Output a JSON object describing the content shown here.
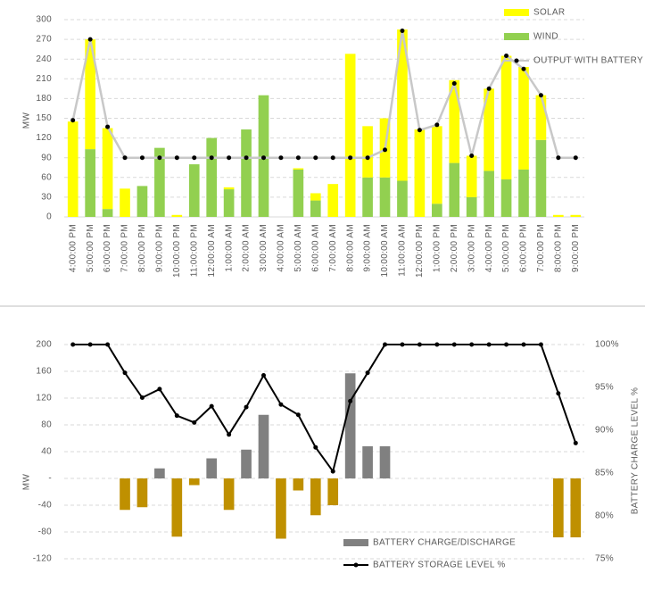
{
  "chart_data": [
    {
      "type": "bar",
      "stacked": true,
      "y_label": "MW",
      "categories": [
        "4:00:00 PM",
        "5:00:00 PM",
        "6:00:00 PM",
        "7:00:00 PM",
        "8:00:00 PM",
        "9:00:00 PM",
        "10:00:00 PM",
        "11:00:00 PM",
        "12:00:00 AM",
        "1:00:00 AM",
        "2:00:00 AM",
        "3:00:00 AM",
        "4:00:00 AM",
        "5:00:00 AM",
        "6:00:00 AM",
        "7:00:00 AM",
        "8:00:00 AM",
        "9:00:00 AM",
        "10:00:00 AM",
        "11:00:00 AM",
        "12:00:00 PM",
        "1:00:00 PM",
        "2:00:00 PM",
        "3:00:00 PM",
        "4:00:00 PM",
        "5:00:00 PM",
        "6:00:00 PM",
        "7:00:00 PM",
        "8:00:00 PM",
        "9:00:00 PM"
      ],
      "series": [
        {
          "name": "SOLAR",
          "color": "#ffff00",
          "values": [
            145,
            167,
            123,
            43,
            0,
            0,
            3,
            0,
            0,
            3,
            0,
            0,
            0,
            2,
            11,
            50,
            248,
            78,
            90,
            230,
            133,
            118,
            126,
            63,
            125,
            188,
            156,
            68,
            3,
            3
          ]
        },
        {
          "name": "WIND",
          "color": "#92d050",
          "values": [
            0,
            103,
            12,
            0,
            47,
            105,
            0,
            80,
            120,
            42,
            133,
            185,
            0,
            72,
            25,
            0,
            0,
            60,
            60,
            55,
            0,
            20,
            82,
            30,
            70,
            57,
            72,
            117,
            0,
            0
          ]
        },
        {
          "name": "OUTPUT WITH BATTERY",
          "type": "line",
          "color": "#c8c8c8",
          "marker_color": "#000000",
          "values": [
            147,
            270,
            137,
            90,
            90,
            90,
            90,
            90,
            90,
            90,
            90,
            90,
            90,
            90,
            90,
            90,
            90,
            90,
            102,
            283,
            132,
            140,
            203,
            93,
            195,
            245,
            225,
            185,
            90,
            90
          ]
        }
      ],
      "ylim": [
        0,
        300
      ],
      "yticks": [
        0,
        30,
        60,
        90,
        120,
        150,
        180,
        210,
        240,
        270,
        300
      ],
      "grid": true,
      "legend": "top-right"
    },
    {
      "type": "bar",
      "y_label": "MW",
      "y2_label": "BATTERY CHARGE LEVEL %",
      "series": [
        {
          "name": "BATTERY CHARGE/DISCHARGE",
          "color": "#808080",
          "negative_color": "#bf9000",
          "values": [
            0,
            0,
            0,
            -47,
            -43,
            15,
            -87,
            -10,
            30,
            -47,
            43,
            95,
            -90,
            -18,
            -55,
            -40,
            157,
            48,
            48,
            0,
            0,
            0,
            0,
            0,
            0,
            0,
            0,
            0,
            -88,
            -88
          ]
        },
        {
          "name": "BATTERY STORAGE LEVEL %",
          "type": "line",
          "axis": "y2",
          "color": "#000000",
          "marker_color": "#000000",
          "values": [
            100,
            100,
            100,
            96.7,
            93.8,
            94.8,
            91.7,
            90.9,
            92.8,
            89.5,
            92.7,
            96.4,
            93,
            91.8,
            88,
            85.2,
            93.4,
            96.7,
            100,
            100,
            100,
            100,
            100,
            100,
            100,
            100,
            100,
            100,
            94.3,
            88.5
          ]
        }
      ],
      "ylim": [
        -120,
        200
      ],
      "yticks": [
        -120,
        -80,
        -40,
        {
          "value": 0,
          "label": "-"
        },
        40,
        80,
        120,
        160,
        200
      ],
      "y2lim": [
        75,
        100
      ],
      "y2ticks": [
        {
          "value": 75,
          "label": "75%"
        },
        {
          "value": 80,
          "label": "80%"
        },
        {
          "value": 85,
          "label": "85%"
        },
        {
          "value": 90,
          "label": "90%"
        },
        {
          "value": 95,
          "label": "95%"
        },
        {
          "value": 100,
          "label": "100%"
        }
      ],
      "grid": true,
      "legend": "bottom-center"
    }
  ]
}
